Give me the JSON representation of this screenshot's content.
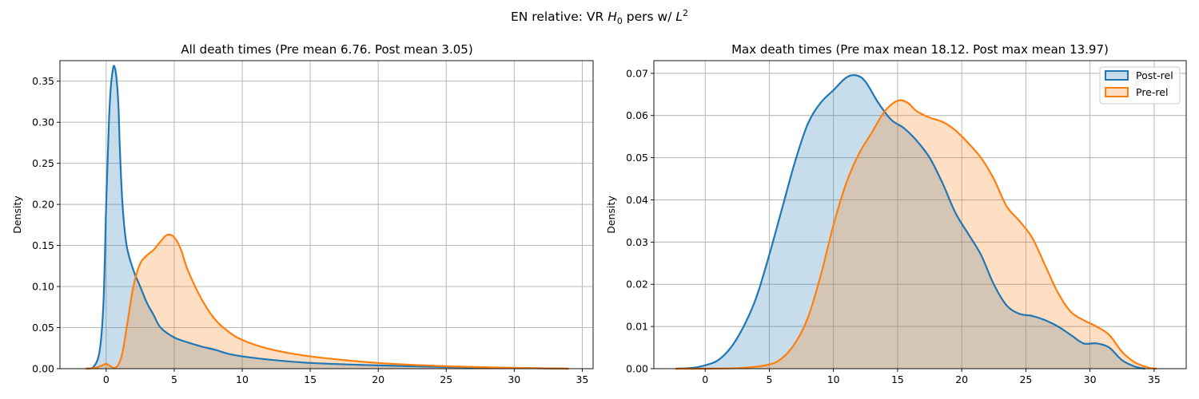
{
  "figure": {
    "suptitle": "EN relative: VR H₀ pers w/ L²"
  },
  "colors": {
    "post": "#1f77b4",
    "pre": "#ff7f0e",
    "grid": "#b0b0b0"
  },
  "chart_data": [
    {
      "type": "area",
      "title": "All death times (Pre mean 6.76. Post mean 3.05)",
      "xlabel": "",
      "ylabel": "Density",
      "xlim": [
        -3.4,
        35.8
      ],
      "ylim": [
        0,
        0.375
      ],
      "xticks": [
        "0",
        "5",
        "10",
        "15",
        "20",
        "25",
        "30",
        "35"
      ],
      "xtick_values": [
        0,
        5,
        10,
        15,
        20,
        25,
        30,
        35
      ],
      "yticks": [
        "0.00",
        "0.05",
        "0.10",
        "0.15",
        "0.20",
        "0.25",
        "0.30",
        "0.35"
      ],
      "ytick_values": [
        0,
        0.05,
        0.1,
        0.15,
        0.2,
        0.25,
        0.3,
        0.35
      ],
      "grid": true,
      "series": [
        {
          "key": "post",
          "x": [
            -1.5,
            -1.0,
            -0.5,
            -0.2,
            0.0,
            0.2,
            0.35,
            0.5,
            0.6,
            0.75,
            0.9,
            1.0,
            1.2,
            1.5,
            2.0,
            2.5,
            3.0,
            3.5,
            4.0,
            5.0,
            6.0,
            7.0,
            8.0,
            9.0,
            10.0,
            12.0,
            15.0,
            20.0,
            25.0,
            30.0,
            34.0
          ],
          "y": [
            0.0,
            0.001,
            0.02,
            0.08,
            0.2,
            0.3,
            0.345,
            0.365,
            0.368,
            0.355,
            0.32,
            0.27,
            0.2,
            0.15,
            0.12,
            0.1,
            0.08,
            0.065,
            0.05,
            0.038,
            0.032,
            0.027,
            0.023,
            0.018,
            0.015,
            0.011,
            0.007,
            0.004,
            0.002,
            0.001,
            0.0
          ]
        },
        {
          "key": "pre",
          "x": [
            -1.5,
            -0.8,
            -0.3,
            0.0,
            0.3,
            0.6,
            0.9,
            1.2,
            1.6,
            2.0,
            2.5,
            3.0,
            3.5,
            4.0,
            4.5,
            5.0,
            5.5,
            6.0,
            7.0,
            8.0,
            9.0,
            10.0,
            12.0,
            15.0,
            20.0,
            25.0,
            30.0,
            34.0
          ],
          "y": [
            0.0,
            0.001,
            0.004,
            0.006,
            0.003,
            0.001,
            0.005,
            0.02,
            0.06,
            0.1,
            0.128,
            0.138,
            0.145,
            0.155,
            0.163,
            0.16,
            0.145,
            0.12,
            0.085,
            0.06,
            0.045,
            0.035,
            0.024,
            0.015,
            0.007,
            0.003,
            0.001,
            0.0
          ]
        }
      ]
    },
    {
      "type": "area",
      "title": "Max death times (Pre max mean 18.12. Post max mean 13.97)",
      "xlabel": "",
      "ylabel": "Density",
      "xlim": [
        -4.0,
        37.5
      ],
      "ylim": [
        0,
        0.073
      ],
      "xticks": [
        "0",
        "5",
        "10",
        "15",
        "20",
        "25",
        "30",
        "35"
      ],
      "xtick_values": [
        0,
        5,
        10,
        15,
        20,
        25,
        30,
        35
      ],
      "yticks": [
        "0.00",
        "0.01",
        "0.02",
        "0.03",
        "0.04",
        "0.05",
        "0.06",
        "0.07"
      ],
      "ytick_values": [
        0,
        0.01,
        0.02,
        0.03,
        0.04,
        0.05,
        0.06,
        0.07
      ],
      "grid": true,
      "legend": {
        "position": "top-right",
        "entries": [
          {
            "key": "post",
            "label": "Post-rel"
          },
          {
            "key": "pre",
            "label": "Pre-rel"
          }
        ]
      },
      "series": [
        {
          "key": "post",
          "name": "Post-rel",
          "x": [
            -2.3,
            -1.0,
            0.0,
            1.0,
            2.0,
            3.0,
            4.0,
            5.0,
            6.0,
            7.0,
            8.0,
            9.0,
            10.0,
            11.0,
            11.8,
            12.5,
            13.5,
            14.5,
            15.5,
            16.5,
            17.5,
            18.5,
            19.5,
            20.5,
            21.5,
            22.5,
            23.5,
            24.5,
            25.5,
            26.5,
            27.5,
            28.5,
            29.5,
            30.5,
            31.5,
            32.5,
            33.5,
            34.3
          ],
          "y": [
            0.0,
            0.0002,
            0.0008,
            0.002,
            0.005,
            0.01,
            0.017,
            0.027,
            0.038,
            0.049,
            0.058,
            0.063,
            0.066,
            0.069,
            0.0695,
            0.068,
            0.063,
            0.059,
            0.057,
            0.054,
            0.05,
            0.044,
            0.037,
            0.032,
            0.027,
            0.02,
            0.015,
            0.013,
            0.0125,
            0.0115,
            0.01,
            0.008,
            0.006,
            0.006,
            0.005,
            0.002,
            0.0005,
            0.0
          ]
        },
        {
          "key": "pre",
          "name": "Pre-rel",
          "x": [
            -2.3,
            0.0,
            3.0,
            5.0,
            6.0,
            7.0,
            8.0,
            9.0,
            10.0,
            11.0,
            12.0,
            13.0,
            14.0,
            15.0,
            15.8,
            16.5,
            17.5,
            18.5,
            19.5,
            20.5,
            21.5,
            22.5,
            23.5,
            24.5,
            25.5,
            26.5,
            27.5,
            28.5,
            29.5,
            30.5,
            31.5,
            32.5,
            33.5,
            34.5,
            35.2
          ],
          "y": [
            0.0,
            0.0,
            0.0002,
            0.001,
            0.0025,
            0.006,
            0.012,
            0.022,
            0.034,
            0.044,
            0.051,
            0.056,
            0.061,
            0.0635,
            0.063,
            0.061,
            0.0595,
            0.0585,
            0.0565,
            0.0535,
            0.05,
            0.045,
            0.0385,
            0.035,
            0.031,
            0.0245,
            0.018,
            0.0135,
            0.0115,
            0.01,
            0.008,
            0.004,
            0.0015,
            0.0003,
            0.0
          ]
        }
      ]
    }
  ]
}
